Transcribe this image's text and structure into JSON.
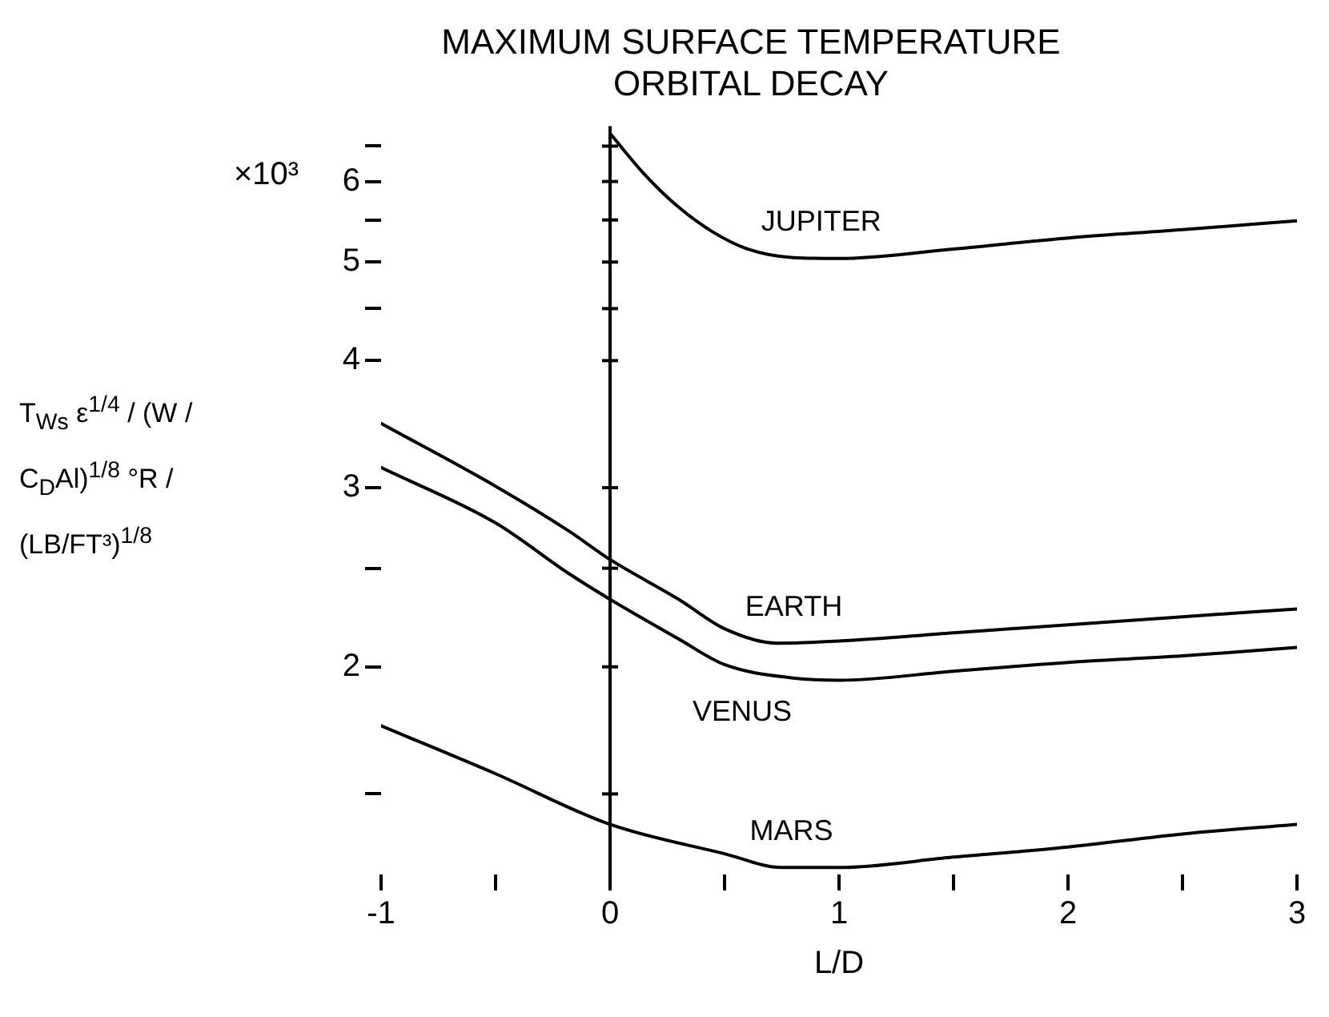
{
  "chart_data": {
    "type": "line",
    "title": "MAXIMUM SURFACE TEMPERATURE",
    "subtitle": "ORBITAL DECAY",
    "xlabel": "L/D",
    "ylabel": "T$_{Ws}$ ε$^{1/4}$ / (W / C$_{D}$Al)$^{1/8}$   °R / (LB/FT³)$^{1/8}$",
    "annotations": [
      "×10³"
    ],
    "series": [
      {
        "name": "JUPITER",
        "color": "#000000",
        "x": [
          0,
          0.15,
          0.3,
          0.45,
          0.6,
          0.8,
          1,
          1.5,
          2,
          2.5,
          3
        ],
        "values": [
          6.69,
          6.1,
          5.66,
          5.35,
          5.15,
          5.05,
          5.04,
          5.15,
          5.28,
          5.38,
          5.49
        ]
      },
      {
        "name": "EARTH",
        "color": "#000000",
        "x": [
          -1,
          -0.5,
          -0.18,
          0,
          0.3,
          0.5,
          0.73,
          1,
          1.5,
          2,
          2.5,
          3
        ],
        "values": [
          3.47,
          3.01,
          2.72,
          2.55,
          2.33,
          2.18,
          2.11,
          2.12,
          2.16,
          2.2,
          2.24,
          2.28
        ]
      },
      {
        "name": "VENUS",
        "color": "#000000",
        "x": [
          -1,
          -0.5,
          -0.18,
          0,
          0.3,
          0.5,
          0.8,
          1,
          1.5,
          2,
          2.5,
          3
        ],
        "values": [
          3.14,
          2.77,
          2.47,
          2.33,
          2.13,
          2.01,
          1.95,
          1.94,
          1.98,
          2.02,
          2.05,
          2.09
        ]
      },
      {
        "name": "MARS",
        "color": "#000000",
        "x": [
          -1,
          -0.5,
          0,
          0.5,
          0.75,
          1,
          1.5,
          2,
          2.5,
          3
        ],
        "values": [
          1.75,
          1.57,
          1.4,
          1.31,
          1.27,
          1.27,
          1.3,
          1.33,
          1.37,
          1.4
        ]
      }
    ],
    "xlim": [
      -1,
      3
    ],
    "xticks": [
      -1,
      {
        "value": -0.5,
        "label": null
      },
      0,
      {
        "value": 0.5,
        "label": null
      },
      1,
      {
        "value": 1.5,
        "label": null
      },
      2,
      {
        "value": 2.5,
        "label": null
      },
      3
    ],
    "ylim": [
      1.25,
      6.8
    ],
    "yticks": [
      {
        "value": 1.5,
        "label": null
      },
      2,
      {
        "value": 2.5,
        "label": null
      },
      3,
      4,
      {
        "value": 4.5,
        "label": null
      },
      5,
      {
        "value": 5.5,
        "label": null
      },
      6,
      {
        "value": 6.5,
        "label": null
      }
    ],
    "log": "y",
    "grid": false,
    "legend": false,
    "marker": "none",
    "line_style": "solid",
    "ref_lines": [
      {
        "axis": "x",
        "value": 0,
        "label": null
      }
    ]
  }
}
